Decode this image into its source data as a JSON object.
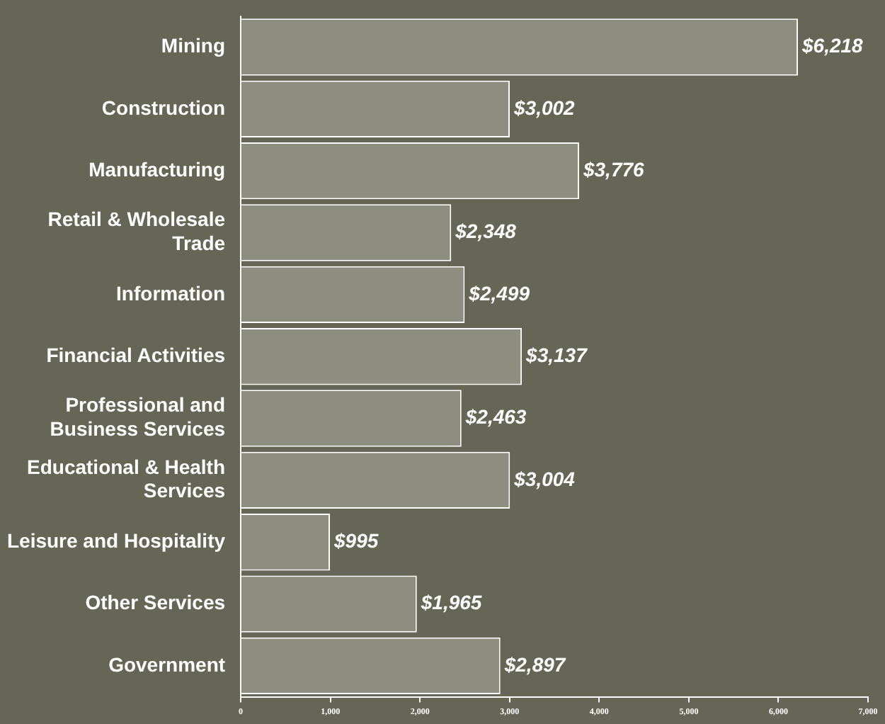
{
  "chart_data": {
    "type": "bar",
    "orientation": "horizontal",
    "categories": [
      "Mining",
      "Construction",
      "Manufacturing",
      "Retail & Wholesale Trade",
      "Information",
      "Financial Activities",
      "Professional and Business Services",
      "Educational & Health Services",
      "Leisure and Hospitality",
      "Other Services",
      "Government"
    ],
    "values": [
      6218,
      3002,
      3776,
      2348,
      2499,
      3137,
      2463,
      3004,
      995,
      1965,
      2897
    ],
    "value_labels": [
      "$6,218",
      "$3,002",
      "$3,776",
      "$2,348",
      "$2,499",
      "$3,137",
      "$2,463",
      "$3,004",
      "$995",
      "$1,965",
      "$2,897"
    ],
    "color": "#8e8e80",
    "xlim": [
      0,
      7000
    ],
    "xticks": [
      0,
      {
        "value": 1000,
        "label": "1,000"
      },
      {
        "value": 2000,
        "label": "2,000"
      },
      {
        "value": 3000,
        "label": "3,000"
      },
      {
        "value": 4000,
        "label": "4,000"
      },
      {
        "value": 5000,
        "label": "5,000"
      },
      {
        "value": 6000,
        "label": "6,000"
      },
      {
        "value": 7000,
        "label": "7,000"
      }
    ],
    "grid": false,
    "legend": false
  }
}
